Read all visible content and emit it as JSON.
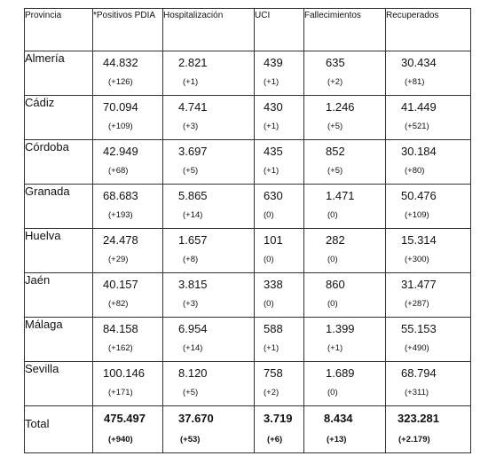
{
  "table": {
    "headers": [
      "Provincia",
      "*Positivos PDIA",
      "Hospitalización",
      "UCI",
      "Fallecimientos",
      "Recuperados"
    ],
    "rows": [
      {
        "province": "Almería",
        "cells": [
          {
            "value": "44.832",
            "change": "(+126)"
          },
          {
            "value": "2.821",
            "change": "(+1)"
          },
          {
            "value": "439",
            "change": "(+1)"
          },
          {
            "value": "635",
            "change": "(+2)"
          },
          {
            "value": "30.434",
            "change": "(+81)"
          }
        ]
      },
      {
        "province": "Cádiz",
        "cells": [
          {
            "value": "70.094",
            "change": "(+109)"
          },
          {
            "value": "4.741",
            "change": "(+3)"
          },
          {
            "value": "430",
            "change": "(+1)"
          },
          {
            "value": "1.246",
            "change": "(+5)"
          },
          {
            "value": "41.449",
            "change": "(+521)"
          }
        ]
      },
      {
        "province": "Córdoba",
        "cells": [
          {
            "value": "42.949",
            "change": "(+68)"
          },
          {
            "value": "3.697",
            "change": "(+5)"
          },
          {
            "value": "435",
            "change": "(+1)"
          },
          {
            "value": "852",
            "change": "(+5)"
          },
          {
            "value": "30.184",
            "change": "(+80)"
          }
        ]
      },
      {
        "province": "Granada",
        "cells": [
          {
            "value": "68.683",
            "change": "(+193)"
          },
          {
            "value": "5.865",
            "change": "(+14)"
          },
          {
            "value": "630",
            "change": "(0)"
          },
          {
            "value": "1.471",
            "change": "(0)"
          },
          {
            "value": "50.476",
            "change": "(+109)"
          }
        ]
      },
      {
        "province": "Huelva",
        "cells": [
          {
            "value": "24.478",
            "change": "(+29)"
          },
          {
            "value": "1.657",
            "change": "(+8)"
          },
          {
            "value": "101",
            "change": "(0)"
          },
          {
            "value": "282",
            "change": "(0)"
          },
          {
            "value": "15.314",
            "change": "(+300)"
          }
        ]
      },
      {
        "province": "Jaén",
        "cells": [
          {
            "value": "40.157",
            "change": "(+82)"
          },
          {
            "value": "3.815",
            "change": "(+3)"
          },
          {
            "value": "338",
            "change": "(0)"
          },
          {
            "value": "860",
            "change": "(0)"
          },
          {
            "value": "31.477",
            "change": "(+287)"
          }
        ]
      },
      {
        "province": "Málaga",
        "cells": [
          {
            "value": "84.158",
            "change": "(+162)"
          },
          {
            "value": "6.954",
            "change": "(+14)"
          },
          {
            "value": "588",
            "change": "(+1)"
          },
          {
            "value": "1.399",
            "change": "(+1)"
          },
          {
            "value": "55.153",
            "change": "(+490)"
          }
        ]
      },
      {
        "province": "Sevilla",
        "cells": [
          {
            "value": "100.146",
            "change": "(+171)"
          },
          {
            "value": "8.120",
            "change": "(+5)"
          },
          {
            "value": "758",
            "change": "(+2)"
          },
          {
            "value": "1.689",
            "change": "(0)"
          },
          {
            "value": "68.794",
            "change": "(+311)"
          }
        ]
      }
    ],
    "total": {
      "label": "Total",
      "cells": [
        {
          "value": "475.497",
          "change": "(+940)"
        },
        {
          "value": "37.670",
          "change": "(+53)"
        },
        {
          "value": "3.719",
          "change": "(+6)"
        },
        {
          "value": "8.434",
          "change": "(+13)"
        },
        {
          "value": "323.281",
          "change": "(+2.179)"
        }
      ]
    }
  }
}
